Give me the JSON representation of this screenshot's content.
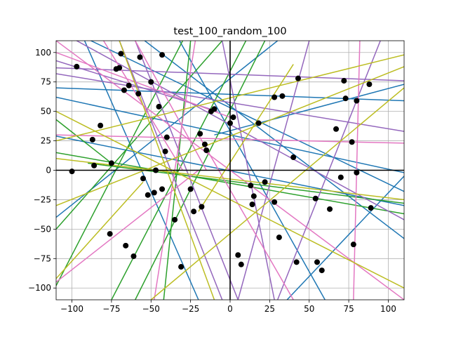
{
  "chart_data": {
    "type": "scatter",
    "title": "test_100_random_100",
    "xlabel": "",
    "ylabel": "",
    "xlim": [
      -110,
      110
    ],
    "ylim": [
      -110,
      110
    ],
    "xticks": [
      -100,
      -75,
      -50,
      -25,
      0,
      25,
      50,
      75,
      100
    ],
    "yticks": [
      -100,
      -75,
      -50,
      -25,
      0,
      25,
      50,
      75,
      100
    ],
    "grid": true,
    "colors": {
      "point": "#000000",
      "axes": "#000000",
      "grid": "#b0b0b0",
      "blue": "#1f77b4",
      "green": "#2ca02c",
      "purple": "#9467bd",
      "pink": "#e377c2",
      "olive": "#bcbd22"
    },
    "series": [
      {
        "values": [
          [
            -100,
            -1
          ],
          [
            -97,
            88
          ],
          [
            -86,
            4
          ],
          [
            -87,
            26
          ],
          [
            -82,
            38
          ],
          [
            -75,
            6
          ],
          [
            -76,
            -54
          ],
          [
            -72,
            86
          ],
          [
            -70,
            87
          ],
          [
            -69,
            99
          ],
          [
            -67,
            68
          ],
          [
            -66,
            -64
          ],
          [
            -64,
            72
          ],
          [
            -61,
            -73
          ],
          [
            -58,
            65
          ],
          [
            -57,
            96
          ],
          [
            -55,
            -7
          ],
          [
            -52,
            -21
          ],
          [
            -50,
            75
          ],
          [
            -48,
            -19
          ],
          [
            -47,
            0
          ],
          [
            -45,
            54
          ],
          [
            -43,
            98
          ],
          [
            -43,
            -16
          ],
          [
            -41,
            16
          ],
          [
            -40,
            28
          ],
          [
            -35,
            -42
          ],
          [
            -31,
            -82
          ],
          [
            -25,
            -16
          ],
          [
            -23,
            -35
          ],
          [
            -19,
            31
          ],
          [
            -18,
            -31
          ],
          [
            -16,
            22
          ],
          [
            -15,
            17
          ],
          [
            -12,
            50
          ],
          [
            -10,
            52
          ],
          [
            0,
            40
          ],
          [
            2,
            45
          ],
          [
            5,
            -72
          ],
          [
            7,
            -80
          ],
          [
            13,
            -13
          ],
          [
            15,
            -22
          ],
          [
            14,
            -29
          ],
          [
            18,
            40
          ],
          [
            22,
            -10
          ],
          [
            28,
            62
          ],
          [
            28,
            -27
          ],
          [
            31,
            -57
          ],
          [
            33,
            63
          ],
          [
            40,
            11
          ],
          [
            42,
            -78
          ],
          [
            43,
            78
          ],
          [
            54,
            -24
          ],
          [
            55,
            -78
          ],
          [
            58,
            -85
          ],
          [
            63,
            -33
          ],
          [
            67,
            35
          ],
          [
            70,
            -6
          ],
          [
            72,
            76
          ],
          [
            73,
            61
          ],
          [
            77,
            24
          ],
          [
            78,
            -63
          ],
          [
            80,
            -2
          ],
          [
            80,
            59
          ],
          [
            88,
            73
          ],
          [
            89,
            -32
          ]
        ]
      }
    ],
    "lines": [
      {
        "color": "blue",
        "points": [
          [
            -110,
            70
          ],
          [
            110,
            59
          ]
        ]
      },
      {
        "color": "blue",
        "points": [
          [
            -110,
            29
          ],
          [
            110,
            -30
          ]
        ]
      },
      {
        "color": "blue",
        "points": [
          [
            -88,
            110
          ],
          [
            110,
            -18
          ]
        ]
      },
      {
        "color": "blue",
        "points": [
          [
            -54,
            110
          ],
          [
            110,
            -58
          ]
        ]
      },
      {
        "color": "blue",
        "points": [
          [
            -110,
            62
          ],
          [
            110,
            -2
          ]
        ]
      },
      {
        "color": "blue",
        "points": [
          [
            -32,
            110
          ],
          [
            60,
            -110
          ]
        ]
      },
      {
        "color": "blue",
        "points": [
          [
            -110,
            -40
          ],
          [
            30,
            110
          ]
        ]
      },
      {
        "color": "blue",
        "points": [
          [
            36,
            -110
          ],
          [
            110,
            -5
          ]
        ]
      },
      {
        "color": "blue",
        "points": [
          [
            -10,
            30
          ],
          [
            110,
            73
          ]
        ]
      },
      {
        "color": "blue",
        "points": [
          [
            -92,
            110
          ],
          [
            -20,
            -110
          ]
        ]
      },
      {
        "color": "green",
        "points": [
          [
            -110,
            15
          ],
          [
            110,
            -37
          ]
        ]
      },
      {
        "color": "green",
        "points": [
          [
            -110,
            -50
          ],
          [
            -5,
            110
          ]
        ]
      },
      {
        "color": "green",
        "points": [
          [
            -110,
            -98
          ],
          [
            -30,
            110
          ]
        ]
      },
      {
        "color": "green",
        "points": [
          [
            -75,
            -110
          ],
          [
            10,
            110
          ]
        ]
      },
      {
        "color": "green",
        "points": [
          [
            -60,
            -110
          ],
          [
            22,
            110
          ]
        ]
      },
      {
        "color": "green",
        "points": [
          [
            -90,
            6
          ],
          [
            110,
            -28
          ]
        ]
      },
      {
        "color": "green",
        "points": [
          [
            -110,
            43
          ],
          [
            -75,
            6
          ]
        ]
      },
      {
        "color": "green",
        "points": [
          [
            -25,
            110
          ],
          [
            -42,
            -110
          ]
        ]
      },
      {
        "color": "purple",
        "points": [
          [
            -110,
            93
          ],
          [
            -8,
            50
          ]
        ]
      },
      {
        "color": "purple",
        "points": [
          [
            -110,
            82
          ],
          [
            110,
            33
          ]
        ]
      },
      {
        "color": "purple",
        "points": [
          [
            -110,
            87
          ],
          [
            110,
            76
          ]
        ]
      },
      {
        "color": "purple",
        "points": [
          [
            -97,
            110
          ],
          [
            110,
            -42
          ]
        ]
      },
      {
        "color": "purple",
        "points": [
          [
            -70,
            110
          ],
          [
            -5,
            -110
          ]
        ]
      },
      {
        "color": "purple",
        "points": [
          [
            -60,
            110
          ],
          [
            5,
            -110
          ]
        ]
      },
      {
        "color": "purple",
        "points": [
          [
            5,
            -110
          ],
          [
            50,
            110
          ]
        ]
      },
      {
        "color": "purple",
        "points": [
          [
            30,
            -110
          ],
          [
            95,
            110
          ]
        ]
      },
      {
        "color": "purple",
        "points": [
          [
            -5,
            110
          ],
          [
            28,
            -110
          ]
        ]
      },
      {
        "color": "pink",
        "points": [
          [
            -110,
            30
          ],
          [
            110,
            23
          ]
        ]
      },
      {
        "color": "pink",
        "points": [
          [
            -110,
            110
          ],
          [
            110,
            -110
          ]
        ]
      },
      {
        "color": "pink",
        "points": [
          [
            -110,
            100
          ],
          [
            0,
            45
          ]
        ]
      },
      {
        "color": "pink",
        "points": [
          [
            -110,
            -95
          ],
          [
            -20,
            0
          ]
        ]
      },
      {
        "color": "pink",
        "points": [
          [
            -80,
            110
          ],
          [
            -30,
            0
          ]
        ]
      },
      {
        "color": "pink",
        "points": [
          [
            -60,
            110
          ],
          [
            -15,
            0
          ]
        ]
      },
      {
        "color": "pink",
        "points": [
          [
            -20,
            30
          ],
          [
            40,
            -110
          ]
        ]
      },
      {
        "color": "pink",
        "points": [
          [
            -22,
            110
          ],
          [
            -48,
            -110
          ]
        ]
      },
      {
        "color": "pink",
        "points": [
          [
            82,
            110
          ],
          [
            78,
            -110
          ]
        ]
      },
      {
        "color": "olive",
        "points": [
          [
            -110,
            -92
          ],
          [
            -55,
            -10
          ]
        ]
      },
      {
        "color": "olive",
        "points": [
          [
            -110,
            25
          ],
          [
            110,
            98
          ]
        ]
      },
      {
        "color": "olive",
        "points": [
          [
            -110,
            -30
          ],
          [
            110,
            88
          ]
        ]
      },
      {
        "color": "olive",
        "points": [
          [
            -110,
            50
          ],
          [
            110,
            -100
          ]
        ]
      },
      {
        "color": "olive",
        "points": [
          [
            -70,
            110
          ],
          [
            -10,
            -110
          ]
        ]
      },
      {
        "color": "olive",
        "points": [
          [
            -50,
            -110
          ],
          [
            110,
            70
          ]
        ]
      },
      {
        "color": "olive",
        "points": [
          [
            -110,
            10
          ],
          [
            110,
            -25
          ]
        ]
      },
      {
        "color": "olive",
        "points": [
          [
            -20,
            -35
          ],
          [
            40,
            90
          ]
        ]
      }
    ]
  }
}
